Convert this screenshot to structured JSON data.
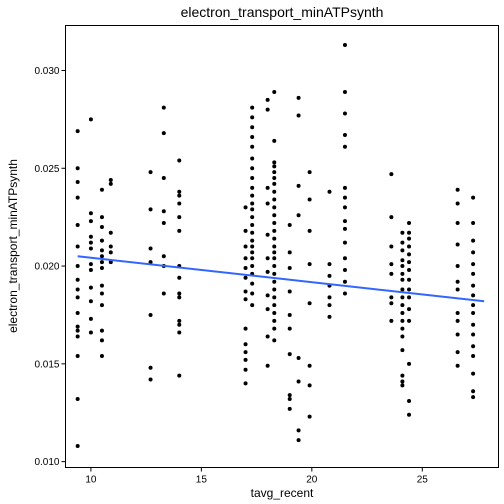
{
  "chart_data": {
    "type": "scatter",
    "title": "electron_transport_minATPsynth",
    "xlabel": "tavg_recent",
    "ylabel": "electron_transport_minATPsynth",
    "xlim": [
      8.85,
      28.45
    ],
    "ylim": [
      0.0097,
      0.0323
    ],
    "xticks": [
      10,
      15,
      20,
      25
    ],
    "xtick_labels": [
      "10",
      "15",
      "20",
      "25"
    ],
    "yticks": [
      0.01,
      0.015,
      0.02,
      0.025,
      0.03
    ],
    "ytick_labels": [
      "0.010",
      "0.015",
      "0.020",
      "0.025",
      "0.030"
    ],
    "grid": false,
    "trend_line": {
      "x": [
        9.4,
        27.8
      ],
      "y": [
        0.0205,
        0.0182
      ]
    },
    "points": {
      "x": [
        9.4,
        9.4,
        9.4,
        9.4,
        9.4,
        9.4,
        9.4,
        9.4,
        9.4,
        9.4,
        9.4,
        9.4,
        9.4,
        9.4,
        9.4,
        9.4,
        9.4,
        10.0,
        10.0,
        10.0,
        10.0,
        10.0,
        10.0,
        10.0,
        10.0,
        10.0,
        10.0,
        10.0,
        10.0,
        10.5,
        10.5,
        10.5,
        10.5,
        10.5,
        10.5,
        10.5,
        10.5,
        10.5,
        10.5,
        10.5,
        10.5,
        10.5,
        10.5,
        10.9,
        10.9,
        10.9,
        10.9,
        10.9,
        10.9,
        12.7,
        12.7,
        12.7,
        12.7,
        12.7,
        12.7,
        12.7,
        13.3,
        13.3,
        13.3,
        13.3,
        13.3,
        13.3,
        13.3,
        13.3,
        14.0,
        14.0,
        14.0,
        14.0,
        14.0,
        14.0,
        14.0,
        14.0,
        14.0,
        14.0,
        14.0,
        14.0,
        14.0,
        14.0,
        17.0,
        17.0,
        17.0,
        17.0,
        17.0,
        17.0,
        17.0,
        17.0,
        17.0,
        17.0,
        17.0,
        17.0,
        17.0,
        17.0,
        17.3,
        17.3,
        17.3,
        17.3,
        17.3,
        17.3,
        17.3,
        17.3,
        17.3,
        17.3,
        17.3,
        17.3,
        17.3,
        17.3,
        17.3,
        17.3,
        17.3,
        17.3,
        17.3,
        17.3,
        17.3,
        17.3,
        17.3,
        17.3,
        18.0,
        18.0,
        18.0,
        18.0,
        18.0,
        18.0,
        18.0,
        18.0,
        18.0,
        18.0,
        18.0,
        18.3,
        18.3,
        18.3,
        18.3,
        18.3,
        18.3,
        18.3,
        18.3,
        18.3,
        18.3,
        18.3,
        18.3,
        18.3,
        18.3,
        18.3,
        18.3,
        18.3,
        18.3,
        18.3,
        18.3,
        18.3,
        18.3,
        18.3,
        18.3,
        18.3,
        18.3,
        18.3,
        19.0,
        19.0,
        19.0,
        19.0,
        19.0,
        19.0,
        19.0,
        19.0,
        19.0,
        19.0,
        19.4,
        19.4,
        19.4,
        19.4,
        19.4,
        19.4,
        19.4,
        19.4,
        19.9,
        19.9,
        19.9,
        19.9,
        19.9,
        19.9,
        19.9,
        19.9,
        20.8,
        20.8,
        20.8,
        20.8,
        20.8,
        20.8,
        20.8,
        21.5,
        21.5,
        21.5,
        21.5,
        21.5,
        21.5,
        21.5,
        21.5,
        21.5,
        21.5,
        21.5,
        21.5,
        21.5,
        21.5,
        21.5,
        23.6,
        23.6,
        23.6,
        23.6,
        23.6,
        23.6,
        23.6,
        23.6,
        24.1,
        24.1,
        24.1,
        24.1,
        24.1,
        24.1,
        24.1,
        24.1,
        24.1,
        24.1,
        24.1,
        24.1,
        24.1,
        24.1,
        24.1,
        24.1,
        24.1,
        24.1,
        24.4,
        24.4,
        24.4,
        24.4,
        24.4,
        24.4,
        24.4,
        24.4,
        24.4,
        24.4,
        24.4,
        24.4,
        24.4,
        24.4,
        24.4,
        26.6,
        26.6,
        26.6,
        26.6,
        26.6,
        26.6,
        26.6,
        26.6,
        26.6,
        26.6,
        26.6,
        26.6,
        27.3,
        27.3,
        27.3,
        27.3,
        27.3,
        27.3,
        27.3,
        27.3,
        27.3,
        27.3,
        27.3,
        27.3,
        27.3,
        27.3,
        27.3,
        27.3,
        27.3
      ],
      "y": [
        0.0269,
        0.025,
        0.0243,
        0.0235,
        0.0221,
        0.021,
        0.02,
        0.0193,
        0.0188,
        0.0184,
        0.0176,
        0.0169,
        0.0167,
        0.0164,
        0.0154,
        0.0132,
        0.0108,
        0.0275,
        0.0227,
        0.0223,
        0.0215,
        0.0212,
        0.0209,
        0.0201,
        0.0198,
        0.0189,
        0.0182,
        0.0173,
        0.0166,
        0.0239,
        0.0225,
        0.022,
        0.0213,
        0.0208,
        0.0205,
        0.0202,
        0.0199,
        0.019,
        0.0186,
        0.018,
        0.0167,
        0.0162,
        0.0154,
        0.0244,
        0.0242,
        0.0217,
        0.021,
        0.0207,
        0.0202,
        0.0248,
        0.0229,
        0.0209,
        0.0202,
        0.0175,
        0.0148,
        0.0142,
        0.0281,
        0.0268,
        0.0245,
        0.0228,
        0.0222,
        0.0205,
        0.02,
        0.0186,
        0.0254,
        0.0238,
        0.0236,
        0.0232,
        0.0225,
        0.0218,
        0.02,
        0.0194,
        0.0186,
        0.0184,
        0.0172,
        0.017,
        0.0166,
        0.0144,
        0.023,
        0.0218,
        0.021,
        0.0204,
        0.0199,
        0.0194,
        0.0187,
        0.0183,
        0.0168,
        0.016,
        0.0156,
        0.0152,
        0.0147,
        0.014,
        0.0281,
        0.0276,
        0.0271,
        0.0266,
        0.0261,
        0.0255,
        0.025,
        0.0245,
        0.024,
        0.0236,
        0.0232,
        0.0229,
        0.0225,
        0.0221,
        0.0217,
        0.0213,
        0.021,
        0.0207,
        0.0204,
        0.02,
        0.0196,
        0.0191,
        0.0186,
        0.018,
        0.0285,
        0.028,
        0.024,
        0.0232,
        0.0216,
        0.0204,
        0.0197,
        0.0185,
        0.0178,
        0.0164,
        0.0149,
        0.0289,
        0.0264,
        0.0253,
        0.0251,
        0.0248,
        0.0245,
        0.0242,
        0.0238,
        0.0234,
        0.023,
        0.0226,
        0.0222,
        0.0218,
        0.0214,
        0.021,
        0.0207,
        0.0204,
        0.02,
        0.0196,
        0.0192,
        0.0188,
        0.0184,
        0.018,
        0.0176,
        0.0172,
        0.0168,
        0.0162,
        0.0221,
        0.0207,
        0.0199,
        0.0187,
        0.0175,
        0.0168,
        0.0155,
        0.0134,
        0.0132,
        0.0127,
        0.0286,
        0.0277,
        0.0241,
        0.0226,
        0.0153,
        0.0141,
        0.0116,
        0.0111,
        0.0248,
        0.0234,
        0.0218,
        0.0201,
        0.0181,
        0.0149,
        0.0139,
        0.0123,
        0.0238,
        0.0201,
        0.0195,
        0.019,
        0.0184,
        0.018,
        0.0174,
        0.0313,
        0.0289,
        0.0278,
        0.0267,
        0.0261,
        0.024,
        0.0235,
        0.023,
        0.0223,
        0.0219,
        0.0212,
        0.0204,
        0.0198,
        0.0192,
        0.0186,
        0.0247,
        0.0225,
        0.021,
        0.0201,
        0.0196,
        0.0184,
        0.0181,
        0.0172,
        0.0217,
        0.0212,
        0.0208,
        0.0203,
        0.02,
        0.0196,
        0.0193,
        0.0188,
        0.0184,
        0.018,
        0.0176,
        0.0172,
        0.0168,
        0.0164,
        0.0157,
        0.0144,
        0.0141,
        0.0139,
        0.0222,
        0.0217,
        0.0214,
        0.021,
        0.0206,
        0.0202,
        0.0198,
        0.0193,
        0.0188,
        0.0184,
        0.0178,
        0.0172,
        0.015,
        0.0131,
        0.0124,
        0.0239,
        0.0232,
        0.0222,
        0.0211,
        0.02,
        0.0192,
        0.0188,
        0.0176,
        0.0172,
        0.0165,
        0.0156,
        0.0149,
        0.0235,
        0.0222,
        0.0213,
        0.0207,
        0.0201,
        0.0196,
        0.019,
        0.0185,
        0.018,
        0.0176,
        0.017,
        0.0165,
        0.0159,
        0.0154,
        0.0145,
        0.0136,
        0.0133
      ]
    }
  }
}
